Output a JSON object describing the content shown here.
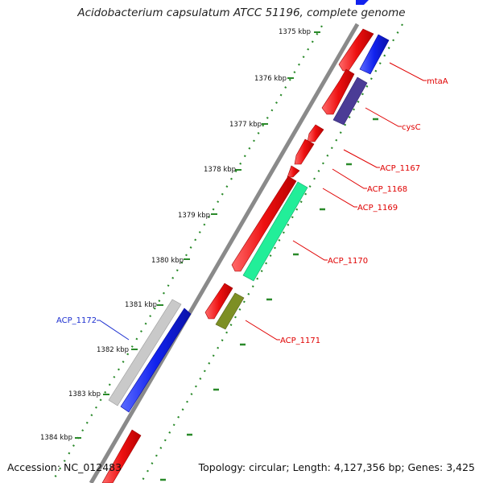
{
  "header": {
    "title": "Acidobacterium capsulatum ATCC 51196, complete genome"
  },
  "footer": {
    "accession": "Accession: NC_012483",
    "summary": "Topology: circular; Length: 4,127,356 bp; Genes: 3,425"
  },
  "ticks": [
    {
      "label": "1375 kbp"
    },
    {
      "label": "1376 kbp"
    },
    {
      "label": "1377 kbp"
    },
    {
      "label": "1378 kbp"
    },
    {
      "label": "1379 kbp"
    },
    {
      "label": "1380 kbp"
    },
    {
      "label": "1381 kbp"
    },
    {
      "label": "1382 kbp"
    },
    {
      "label": "1383 kbp"
    },
    {
      "label": "1384 kbp"
    }
  ],
  "gene_labels": [
    {
      "text": "mtaA",
      "color": "#e00000"
    },
    {
      "text": "cysC",
      "color": "#e00000"
    },
    {
      "text": "ACP_1167",
      "color": "#e00000"
    },
    {
      "text": "ACP_1168",
      "color": "#e00000"
    },
    {
      "text": "ACP_1169",
      "color": "#e00000"
    },
    {
      "text": "ACP_1170",
      "color": "#e00000"
    },
    {
      "text": "ACP_1171",
      "color": "#e00000"
    },
    {
      "text": "ACP_1172",
      "color": "#1c2fd0"
    }
  ],
  "colors": {
    "forward_cds": "#ee1111",
    "reverse_cds": "#1122ee",
    "backbone": "#8a8a8a",
    "dots": "#2a8a2a",
    "cysC_feature": "#4b3c96",
    "acp1170_feature": "#22ee99",
    "acp1171_feature": "#7d8f24",
    "acp1172_feature": "#bdbdbd"
  }
}
